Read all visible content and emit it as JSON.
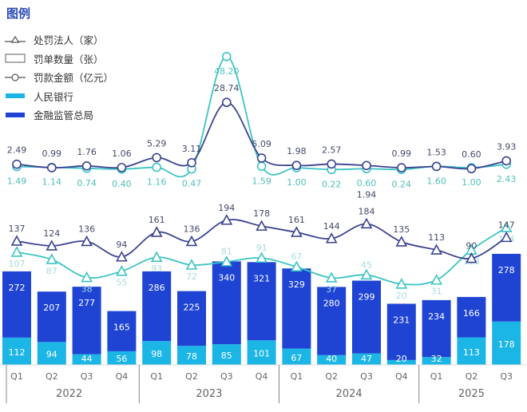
{
  "legend": {
    "title": "图例",
    "items": [
      {
        "label": "处罚法人（家）",
        "symbol": "triangle-line"
      },
      {
        "label": "罚单数量（张）",
        "symbol": "box"
      },
      {
        "label": "罚款金额（亿元）",
        "symbol": "circle-line"
      },
      {
        "label": "人民银行",
        "symbol": "swatch",
        "color": "#1cb6e6"
      },
      {
        "label": "金融监管总局",
        "symbol": "swatch",
        "color": "#1f44d4"
      }
    ]
  },
  "chart_data": {
    "type": "bar+line",
    "categories": [
      "Q1",
      "Q2",
      "Q3",
      "Q4",
      "Q1",
      "Q2",
      "Q3",
      "Q4",
      "Q1",
      "Q2",
      "Q3",
      "Q4",
      "Q1",
      "Q2",
      "Q3"
    ],
    "years": [
      {
        "label": "2022",
        "quarters": 4
      },
      {
        "label": "2023",
        "quarters": 4
      },
      {
        "label": "2024",
        "quarters": 4
      },
      {
        "label": "2025",
        "quarters": 3
      }
    ],
    "colors": {
      "pboc": "#1cb6e6",
      "nfra": "#1f44d4",
      "pboc_line": "#3cc4c4",
      "nfra_line": "#3b4390"
    },
    "penalty_tickets": {
      "stacked": true,
      "series": [
        {
          "name": "人民银行",
          "values": [
            112,
            94,
            44,
            56,
            98,
            78,
            85,
            101,
            67,
            40,
            47,
            20,
            32,
            113,
            178
          ]
        },
        {
          "name": "金融监管总局",
          "values": [
            272,
            207,
            277,
            165,
            286,
            225,
            340,
            321,
            329,
            280,
            299,
            231,
            234,
            166,
            278
          ]
        }
      ]
    },
    "penalized_entities": {
      "series": [
        {
          "name": "金融监管总局",
          "values": [
            137,
            124,
            136,
            94,
            161,
            136,
            194,
            178,
            161,
            144,
            184,
            135,
            113,
            90,
            147
          ]
        },
        {
          "name": "人民银行",
          "values": [
            107,
            87,
            38,
            55,
            93,
            72,
            81,
            91,
            67,
            37,
            45,
            20,
            31,
            113,
            174
          ]
        }
      ]
    },
    "fine_amount": {
      "series": [
        {
          "name": "金融监管总局",
          "values": [
            "2.49",
            "0.99",
            "1.76",
            "1.06",
            "5.29",
            "3.11",
            "28.74",
            "5.09",
            "1.98",
            "2.57",
            "1.94",
            "0.99",
            "1.53",
            "0.60",
            "3.93"
          ]
        },
        {
          "name": "人民银行",
          "values": [
            "1.49",
            "1.14",
            "0.74",
            "0.40",
            "1.16",
            "0.47",
            "48.20",
            "1.59",
            "1.00",
            "0.22",
            "0.60",
            "0.24",
            "1.60",
            "1.00",
            "2.43"
          ]
        }
      ]
    }
  }
}
